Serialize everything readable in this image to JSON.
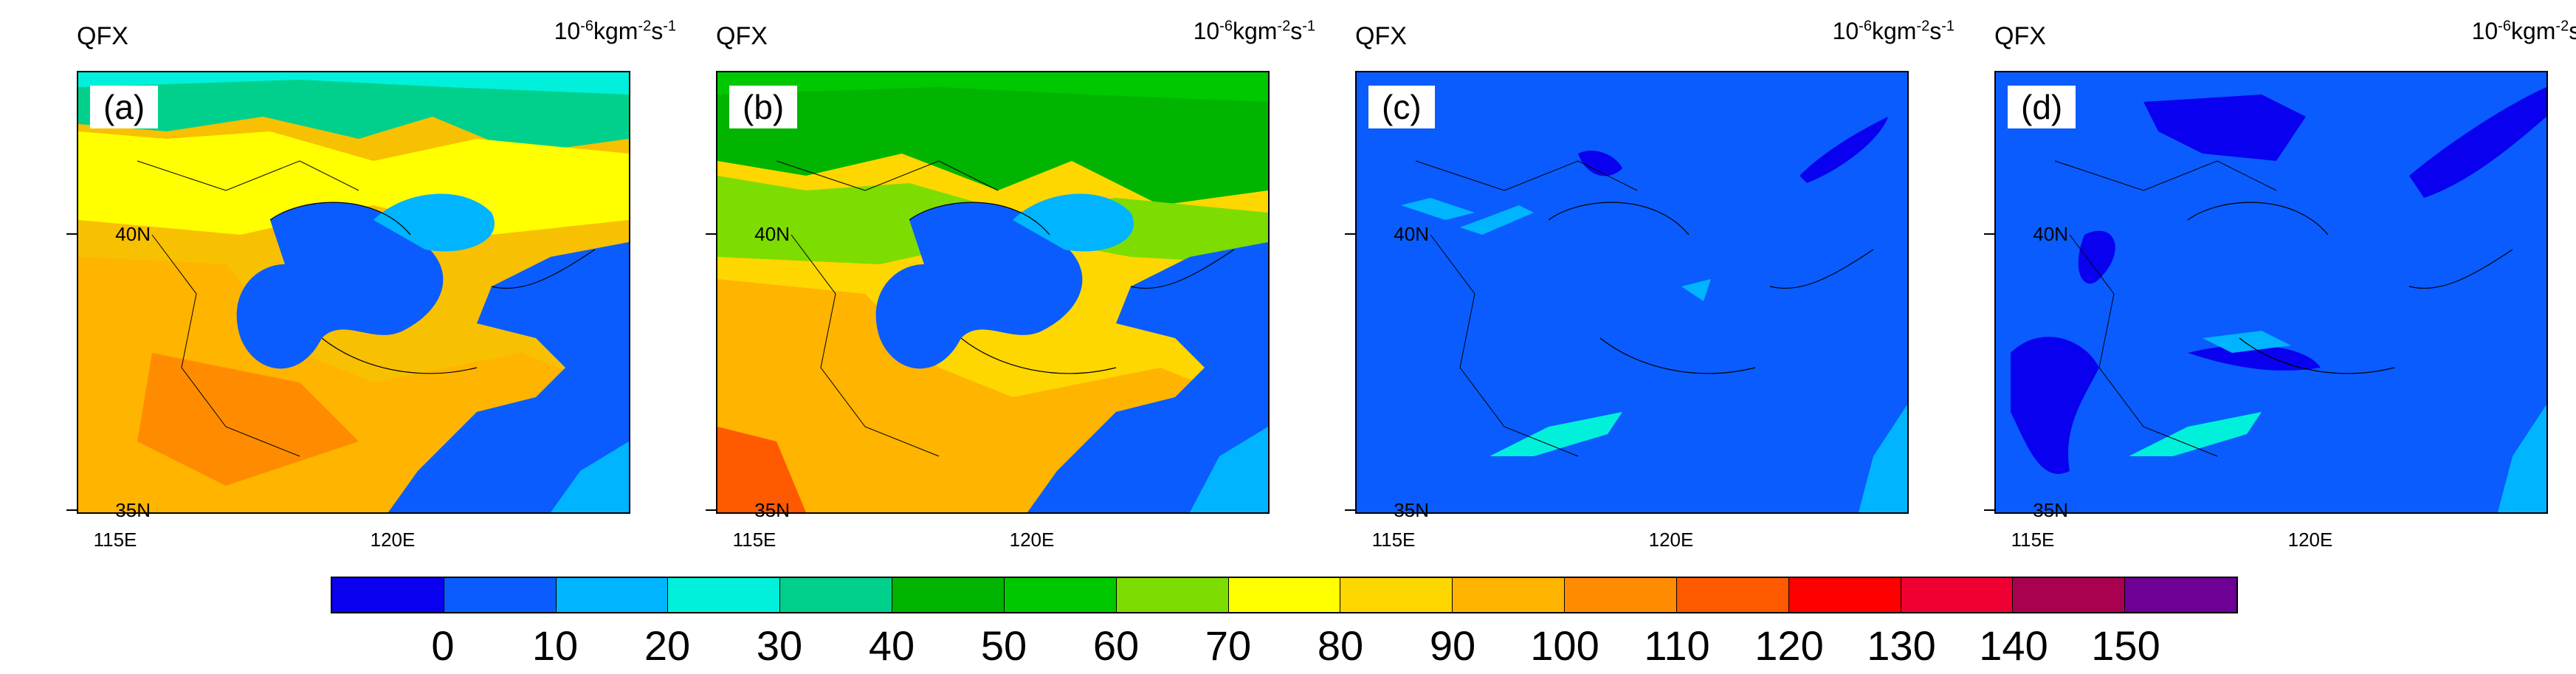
{
  "variable": "QFX",
  "units": {
    "base": "10",
    "exp1": "-6",
    "mid": "kgm",
    "exp2": "-2",
    "mid2": "s",
    "exp3": "-1"
  },
  "axes": {
    "lat_labels": [
      "40N",
      "35N"
    ],
    "lon_labels": [
      "115E",
      "120E"
    ]
  },
  "panels": [
    {
      "tag": "(a)",
      "fill": "#f7c000"
    },
    {
      "tag": "(b)",
      "fill": "#e8d000"
    },
    {
      "tag": "(c)",
      "fill": "#0a5cff"
    },
    {
      "tag": "(d)",
      "fill": "#0a5cff"
    }
  ],
  "colorbar": {
    "colors": [
      "#0a00f0",
      "#0a5cff",
      "#00b4ff",
      "#00f0dc",
      "#00d08c",
      "#00b400",
      "#00c800",
      "#7ddc00",
      "#ffff00",
      "#ffd700",
      "#ffb400",
      "#ff8c00",
      "#ff5a00",
      "#ff0000",
      "#f00032",
      "#aa0050",
      "#6e0096"
    ],
    "labels": [
      "0",
      "10",
      "20",
      "30",
      "40",
      "50",
      "60",
      "70",
      "80",
      "90",
      "100",
      "110",
      "120",
      "130",
      "140",
      "150"
    ]
  }
}
